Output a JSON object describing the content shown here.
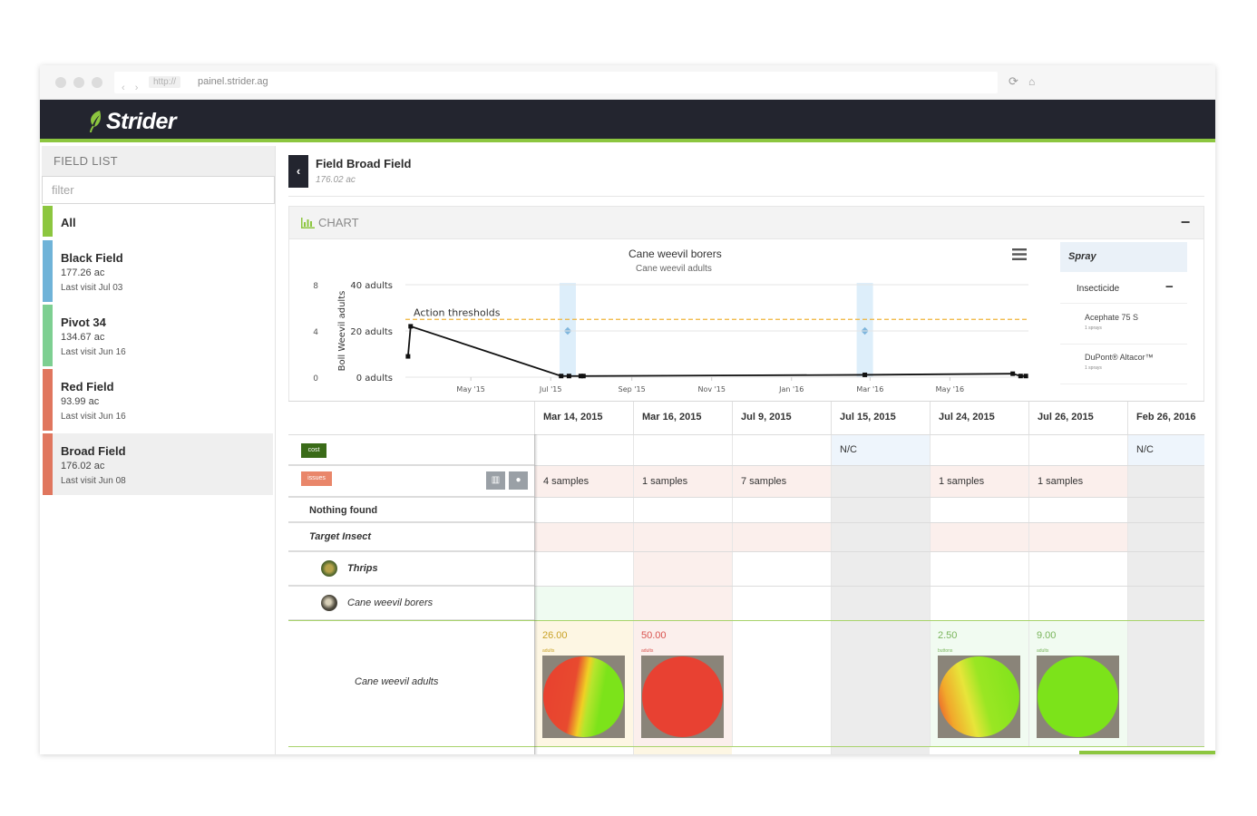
{
  "browser": {
    "proto": "http://",
    "url": "painel.strider.ag"
  },
  "app": {
    "name": "Strider",
    "brand_color": "#8cc63f",
    "header_color": "#23252f"
  },
  "sidebar": {
    "title": "FIELD LIST",
    "filter_placeholder": "filter",
    "all_label": "All",
    "fields": [
      {
        "name": "Black Field",
        "area": "177.26 ac",
        "last_visit": "Last visit Jul 03",
        "color": "#6fb3d8",
        "selected": false
      },
      {
        "name": "Pivot 34",
        "area": "134.67 ac",
        "last_visit": "Last visit Jun 16",
        "color": "#7dcf91",
        "selected": false
      },
      {
        "name": "Red Field",
        "area": "93.99 ac",
        "last_visit": "Last visit Jun 16",
        "color": "#e0765e",
        "selected": false
      },
      {
        "name": "Broad Field",
        "area": "176.02 ac",
        "last_visit": "Last visit Jun 08",
        "color": "#e0765e",
        "selected": true
      }
    ]
  },
  "page": {
    "title": "Field Broad Field",
    "subtitle": "176.02 ac"
  },
  "chart_panel": {
    "title": "CHART",
    "collapse_label": "−"
  },
  "chart_data": {
    "type": "line",
    "title": "Cane weevil borers",
    "subtitle": "Cane weevil adults",
    "ylabel": "Boll Weevil adults",
    "left_ticks": [
      "0",
      "4",
      "8"
    ],
    "y_ticks": [
      "0 adults",
      "20 adults",
      "40 adults"
    ],
    "x_ticks": [
      "May '15",
      "Jul '15",
      "Sep '15",
      "Nov '15",
      "Jan '16",
      "Mar '16",
      "May '16"
    ],
    "threshold": {
      "label": "Action thresholds",
      "value": 25
    },
    "ylim": [
      0,
      40
    ],
    "xlim": [
      "2015-03-12",
      "2016-06-30"
    ],
    "series": [
      {
        "points": [
          {
            "x": "2015-03-14",
            "y": 9
          },
          {
            "x": "2015-03-16",
            "y": 22
          },
          {
            "x": "2015-07-09",
            "y": 0.5
          },
          {
            "x": "2015-07-15",
            "y": 0.5
          },
          {
            "x": "2015-07-24",
            "y": 0.5
          },
          {
            "x": "2015-07-26",
            "y": 0.5
          },
          {
            "x": "2016-02-26",
            "y": 1
          },
          {
            "x": "2016-06-18",
            "y": 1.5
          },
          {
            "x": "2016-06-24",
            "y": 0.5
          },
          {
            "x": "2016-06-28",
            "y": 0.5
          }
        ]
      }
    ],
    "spray_bands": [
      {
        "x": "2015-07-14",
        "y": 20
      },
      {
        "x": "2016-02-26",
        "y": 20
      }
    ]
  },
  "legend": {
    "header": "Spray",
    "group": "Insecticide",
    "items": [
      {
        "name": "Acephate 75 S",
        "count": "1 sprays"
      },
      {
        "name": "DuPont® Altacor™",
        "count": "1 sprays"
      }
    ]
  },
  "grid": {
    "dates": [
      "Mar 14, 2015",
      "Mar 16, 2015",
      "Jul 9, 2015",
      "Jul 15, 2015",
      "Jul 24, 2015",
      "Jul 26, 2015",
      "Feb 26, 2016"
    ],
    "cost_badge": "cost",
    "cost_row": [
      "",
      "",
      "",
      "N/C",
      "",
      "",
      "N/C"
    ],
    "issues_badge": "issues",
    "issues_row": [
      "4 samples",
      "1 samples",
      "7 samples",
      "",
      "1 samples",
      "1 samples",
      ""
    ],
    "nothing_found_label": "Nothing found",
    "target_insect_label": "Target Insect",
    "thrips_label": "Thrips",
    "cane_weevil_label": "Cane weevil borers",
    "measure_label": "Cane weevil adults",
    "measures": [
      {
        "value": "26.00",
        "unit": "adults",
        "color": "#d4a017",
        "heat": "split"
      },
      {
        "value": "50.00",
        "unit": "adults",
        "color": "#d9534f",
        "heat": "red"
      },
      null,
      null,
      {
        "value": "2.50",
        "unit": "buttons",
        "color": "#7ab55c",
        "heat": "yellow"
      },
      {
        "value": "9.00",
        "unit": "adults",
        "color": "#7ab55c",
        "heat": "green"
      },
      null
    ]
  }
}
